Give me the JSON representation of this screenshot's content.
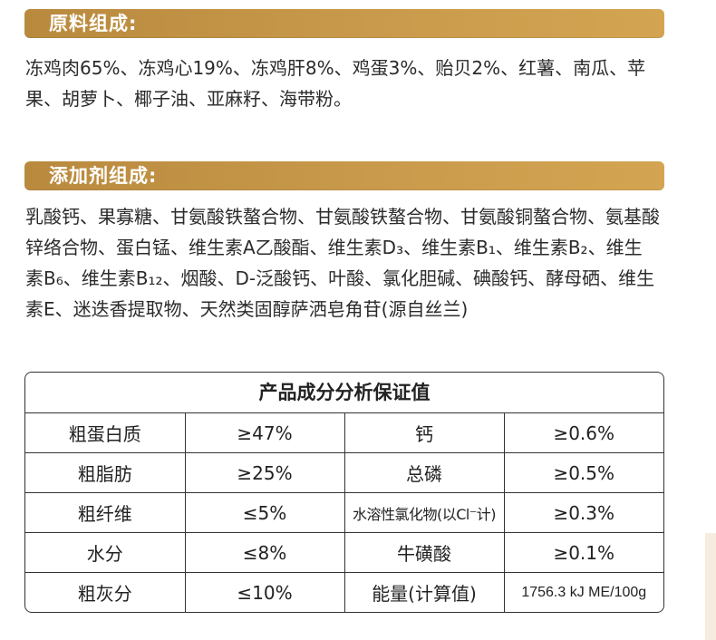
{
  "sections": {
    "ingredients_title": "原料组成:",
    "ingredients_text": "冻鸡肉65%、冻鸡心19%、冻鸡肝8%、鸡蛋3%、贻贝2%、红薯、南瓜、苹果、胡萝卜、椰子油、亚麻籽、海带粉。",
    "additives_title": "添加剂组成:",
    "additives_text": "乳酸钙、果寡糖、甘氨酸铁螯合物、甘氨酸铁螯合物、甘氨酸铜螯合物、氨基酸锌络合物、蛋白锰、维生素A乙酸酯、维生素D₃、维生素B₁、维生素B₂、维生素B₆、维生素B₁₂、烟酸、D-泛酸钙、叶酸、氯化胆碱、碘酸钙、酵母硒、维生素E、迷迭香提取物、天然类固醇萨洒皂角苷(源自丝兰)"
  },
  "table": {
    "title": "产品成分分析保证值",
    "rows": [
      {
        "name1": "粗蛋白质",
        "value1": "≥47%",
        "name2": "钙",
        "value2": "≥0.6%"
      },
      {
        "name1": "粗脂肪",
        "value1": "≥25%",
        "name2": "总磷",
        "value2": "≥0.5%"
      },
      {
        "name1": "粗纤维",
        "value1": "≤5%",
        "name2": "水溶性氯化物(以Cl⁻计)",
        "value2": "≥0.3%"
      },
      {
        "name1": "水分",
        "value1": "≤8%",
        "name2": "牛磺酸",
        "value2": "≥0.1%"
      },
      {
        "name1": "粗灰分",
        "value1": "≤10%",
        "name2": "能量(计算值)",
        "value2": "1756.3 kJ ME/100g"
      }
    ]
  },
  "colors": {
    "bar_start": "#b98a3e",
    "bar_end": "#d3a552",
    "text": "#2b2b2b",
    "border": "#333333"
  }
}
